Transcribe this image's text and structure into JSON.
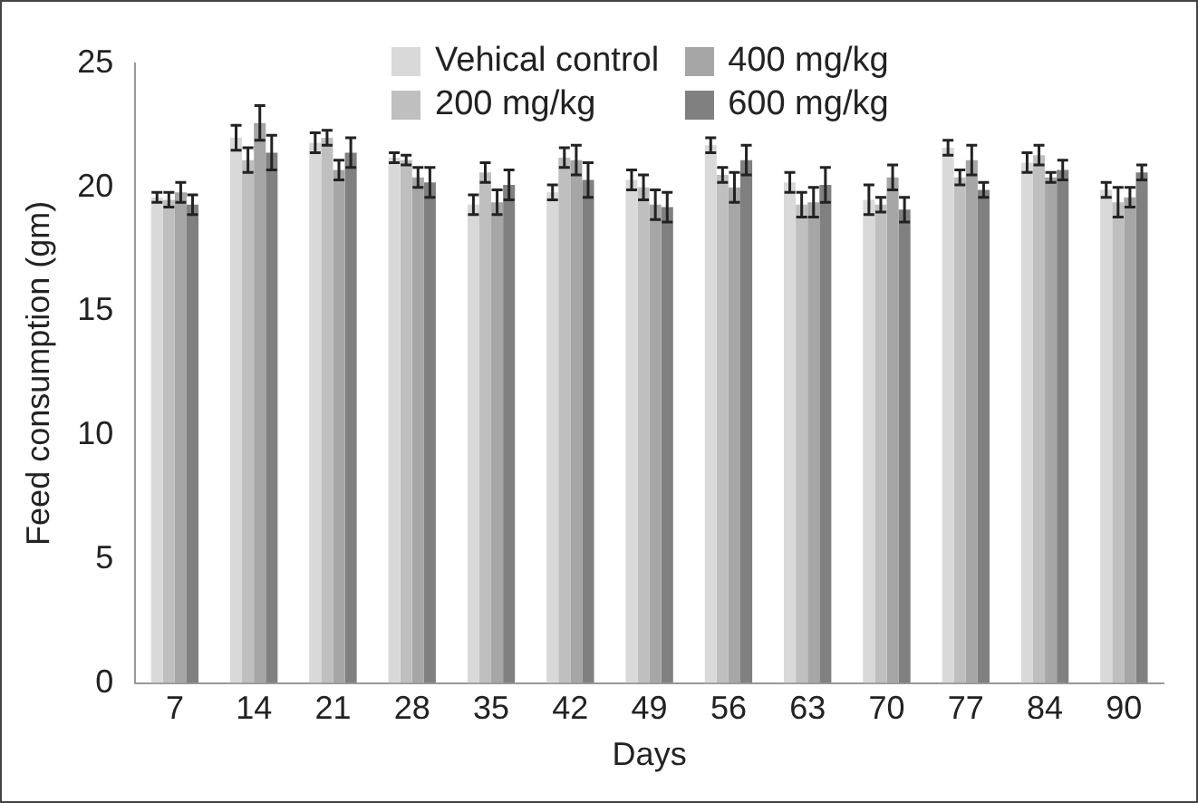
{
  "chart_data": {
    "type": "bar",
    "xlabel": "Days",
    "ylabel": "Feed consumption (gm)",
    "categories": [
      "7",
      "14",
      "21",
      "28",
      "35",
      "42",
      "49",
      "56",
      "63",
      "70",
      "77",
      "84",
      "90"
    ],
    "series": [
      {
        "name": "Vehical control",
        "color": "#d9d9d9",
        "values": [
          19.6,
          22.0,
          21.8,
          21.2,
          19.3,
          19.8,
          20.3,
          21.7,
          20.2,
          19.5,
          21.6,
          21.0,
          19.9
        ],
        "errors": [
          0.2,
          0.5,
          0.4,
          0.2,
          0.4,
          0.3,
          0.4,
          0.3,
          0.4,
          0.6,
          0.3,
          0.4,
          0.3
        ]
      },
      {
        "name": "200 mg/kg",
        "color": "#bfbfbf",
        "values": [
          19.5,
          21.1,
          22.0,
          21.1,
          20.6,
          21.2,
          20.0,
          20.5,
          19.3,
          19.3,
          20.4,
          21.3,
          19.4
        ],
        "errors": [
          0.3,
          0.5,
          0.3,
          0.2,
          0.4,
          0.4,
          0.5,
          0.3,
          0.5,
          0.3,
          0.3,
          0.4,
          0.6
        ]
      },
      {
        "name": "400 mg/kg",
        "color": "#a6a6a6",
        "values": [
          19.8,
          22.6,
          20.7,
          20.4,
          19.4,
          21.1,
          19.3,
          20.0,
          19.4,
          20.4,
          21.1,
          20.4,
          19.6
        ],
        "errors": [
          0.4,
          0.7,
          0.4,
          0.4,
          0.5,
          0.6,
          0.6,
          0.6,
          0.6,
          0.5,
          0.6,
          0.2,
          0.4
        ]
      },
      {
        "name": "600 mg/kg",
        "color": "#808080",
        "values": [
          19.3,
          21.4,
          21.4,
          20.2,
          20.1,
          20.3,
          19.2,
          21.1,
          20.1,
          19.1,
          19.9,
          20.7,
          20.6
        ],
        "errors": [
          0.4,
          0.7,
          0.6,
          0.6,
          0.6,
          0.7,
          0.6,
          0.6,
          0.7,
          0.5,
          0.3,
          0.4,
          0.3
        ]
      }
    ],
    "ylim": [
      0,
      25
    ],
    "yticks": [
      0,
      5,
      10,
      15,
      20,
      25
    ],
    "grid": false,
    "legend": "top"
  }
}
